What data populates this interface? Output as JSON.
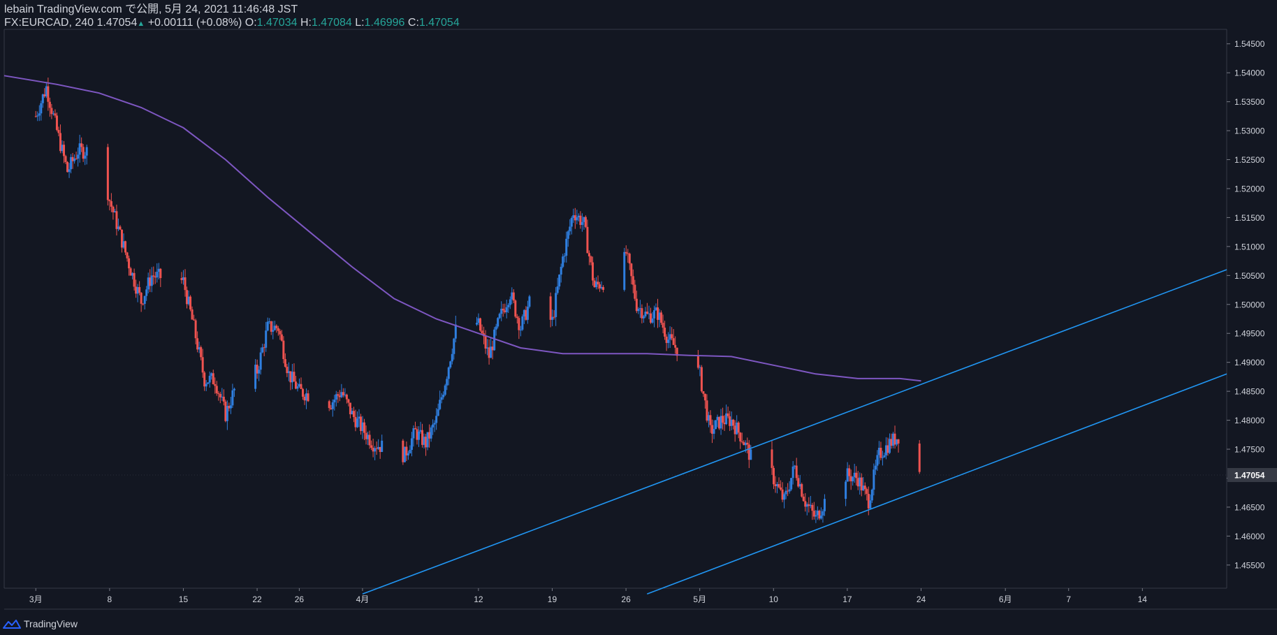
{
  "header": {
    "published_line": "lebain TradingView.com で公開, 5月 24, 2021 11:46:48 JST",
    "symbol": "FX:EURCAD, 240",
    "last": "1.47054",
    "change": "+0.00111 (+0.08%)",
    "open_label": "O:",
    "open": "1.47034",
    "high_label": "H:",
    "high": "1.47084",
    "low_label": "L:",
    "low": "1.46996",
    "close_label": "C:",
    "close": "1.47054"
  },
  "footer": {
    "brand": "TradingView"
  },
  "colors": {
    "background": "#131722",
    "up": "#2f7fe0",
    "down": "#ef5350",
    "ma": "#7e57c2",
    "trendline": "#2196f3",
    "price_tag_bg": "#363a45"
  },
  "chart_data": {
    "type": "candlestick",
    "symbol": "FX:EURCAD",
    "interval": "240",
    "ylim": [
      1.451,
      1.5475
    ],
    "y_ticks": [
      1.455,
      1.46,
      1.465,
      1.47,
      1.475,
      1.48,
      1.485,
      1.49,
      1.495,
      1.5,
      1.505,
      1.51,
      1.515,
      1.52,
      1.525,
      1.53,
      1.535,
      1.54,
      1.545
    ],
    "y_tick_labels": [
      "1.45500",
      "1.46000",
      "1.46500",
      "1.47000",
      "1.47500",
      "1.48000",
      "1.48500",
      "1.49000",
      "1.49500",
      "1.50000",
      "1.50500",
      "1.51000",
      "1.51500",
      "1.52000",
      "1.52500",
      "1.53000",
      "1.53500",
      "1.54000",
      "1.54500"
    ],
    "x_tick_labels": [
      "3月",
      "8",
      "15",
      "22",
      "26",
      "4月",
      "12",
      "19",
      "26",
      "5月",
      "10",
      "17",
      "24",
      "6月",
      "7",
      "14"
    ],
    "x_tick_dates": [
      "2021-03-01",
      "2021-03-08",
      "2021-03-15",
      "2021-03-22",
      "2021-03-26",
      "2021-04-01",
      "2021-04-12",
      "2021-04-19",
      "2021-04-26",
      "2021-05-03",
      "2021-05-10",
      "2021-05-17",
      "2021-05-24",
      "2021-06-01",
      "2021-06-07",
      "2021-06-14"
    ],
    "x_range": [
      "2021-02-26",
      "2021-06-22"
    ],
    "last_price": 1.47054,
    "last_price_label": "1.47054",
    "close_path": [
      [
        "2021-03-01",
        1.5325
      ],
      [
        "2021-03-02",
        1.5375
      ],
      [
        "2021-03-03",
        1.53
      ],
      [
        "2021-03-04",
        1.523
      ],
      [
        "2021-03-05",
        1.5265
      ],
      [
        "2021-03-07",
        1.5265
      ],
      [
        "2021-03-08",
        1.518
      ],
      [
        "2021-03-09",
        1.512
      ],
      [
        "2021-03-10",
        1.506
      ],
      [
        "2021-03-11",
        1.5005
      ],
      [
        "2021-03-12",
        1.505
      ],
      [
        "2021-03-15",
        1.504
      ],
      [
        "2021-03-16",
        1.496
      ],
      [
        "2021-03-17",
        1.487
      ],
      [
        "2021-03-18",
        1.487
      ],
      [
        "2021-03-19",
        1.481
      ],
      [
        "2021-03-20",
        1.486
      ],
      [
        "2021-03-22",
        1.4885
      ],
      [
        "2021-03-23",
        1.496
      ],
      [
        "2021-03-24",
        1.496
      ],
      [
        "2021-03-25",
        1.488
      ],
      [
        "2021-03-26",
        1.485
      ],
      [
        "2021-03-29",
        1.483
      ],
      [
        "2021-03-30",
        1.485
      ],
      [
        "2021-03-31",
        1.481
      ],
      [
        "2021-04-02",
        1.476
      ],
      [
        "2021-04-05",
        1.474
      ],
      [
        "2021-04-06",
        1.478
      ],
      [
        "2021-04-07",
        1.476
      ],
      [
        "2021-04-08",
        1.48
      ],
      [
        "2021-04-09",
        1.488
      ],
      [
        "2021-04-10",
        1.497
      ],
      [
        "2021-04-11",
        1.4985
      ],
      [
        "2021-04-12",
        1.4965
      ],
      [
        "2021-04-13",
        1.491
      ],
      [
        "2021-04-14",
        1.4975
      ],
      [
        "2021-04-15",
        1.502
      ],
      [
        "2021-04-16",
        1.496
      ],
      [
        "2021-04-17",
        1.501
      ],
      [
        "2021-04-18",
        1.499
      ],
      [
        "2021-04-19",
        1.497
      ],
      [
        "2021-04-20",
        1.508
      ],
      [
        "2021-04-21",
        1.516
      ],
      [
        "2021-04-22",
        1.514
      ],
      [
        "2021-04-23",
        1.503
      ],
      [
        "2021-04-24",
        1.504
      ],
      [
        "2021-04-25",
        1.501
      ],
      [
        "2021-04-26",
        1.509
      ],
      [
        "2021-04-27",
        1.5
      ],
      [
        "2021-04-28",
        1.498
      ],
      [
        "2021-04-29",
        1.4985
      ],
      [
        "2021-04-30",
        1.494
      ],
      [
        "2021-05-01",
        1.492
      ],
      [
        "2021-05-03",
        1.488
      ],
      [
        "2021-05-04",
        1.478
      ],
      [
        "2021-05-05",
        1.48
      ],
      [
        "2021-05-06",
        1.48
      ],
      [
        "2021-05-07",
        1.477
      ],
      [
        "2021-05-08",
        1.473
      ],
      [
        "2021-05-09",
        1.475
      ],
      [
        "2021-05-10",
        1.47
      ],
      [
        "2021-05-11",
        1.466
      ],
      [
        "2021-05-12",
        1.472
      ],
      [
        "2021-05-13",
        1.466
      ],
      [
        "2021-05-14",
        1.463
      ],
      [
        "2021-05-16",
        1.47
      ],
      [
        "2021-05-17",
        1.4705
      ],
      [
        "2021-05-18",
        1.47
      ],
      [
        "2021-05-19",
        1.466
      ],
      [
        "2021-05-20",
        1.474
      ],
      [
        "2021-05-21",
        1.476
      ],
      [
        "2021-05-22",
        1.4775
      ],
      [
        "2021-05-23",
        1.474
      ],
      [
        "2021-05-24",
        1.4705
      ]
    ],
    "moving_average": [
      [
        "2021-02-26",
        1.5395
      ],
      [
        "2021-03-03",
        1.538
      ],
      [
        "2021-03-07",
        1.5365
      ],
      [
        "2021-03-11",
        1.534
      ],
      [
        "2021-03-15",
        1.5305
      ],
      [
        "2021-03-19",
        1.525
      ],
      [
        "2021-03-23",
        1.5185
      ],
      [
        "2021-03-27",
        1.5125
      ],
      [
        "2021-03-31",
        1.5065
      ],
      [
        "2021-04-04",
        1.501
      ],
      [
        "2021-04-08",
        1.4975
      ],
      [
        "2021-04-12",
        1.495
      ],
      [
        "2021-04-16",
        1.4925
      ],
      [
        "2021-04-20",
        1.4915
      ],
      [
        "2021-04-24",
        1.4915
      ],
      [
        "2021-04-28",
        1.4915
      ],
      [
        "2021-05-02",
        1.4912
      ],
      [
        "2021-05-06",
        1.491
      ],
      [
        "2021-05-10",
        1.4895
      ],
      [
        "2021-05-14",
        1.488
      ],
      [
        "2021-05-18",
        1.4872
      ],
      [
        "2021-05-22",
        1.4872
      ],
      [
        "2021-05-24",
        1.4868
      ]
    ],
    "trendlines": [
      {
        "from": [
          "2021-04-01",
          1.45
        ],
        "to": [
          "2021-06-22",
          1.506
        ]
      },
      {
        "from": [
          "2021-04-28",
          1.45
        ],
        "to": [
          "2021-06-22",
          1.488
        ]
      }
    ],
    "grid": false,
    "legend": "none"
  }
}
